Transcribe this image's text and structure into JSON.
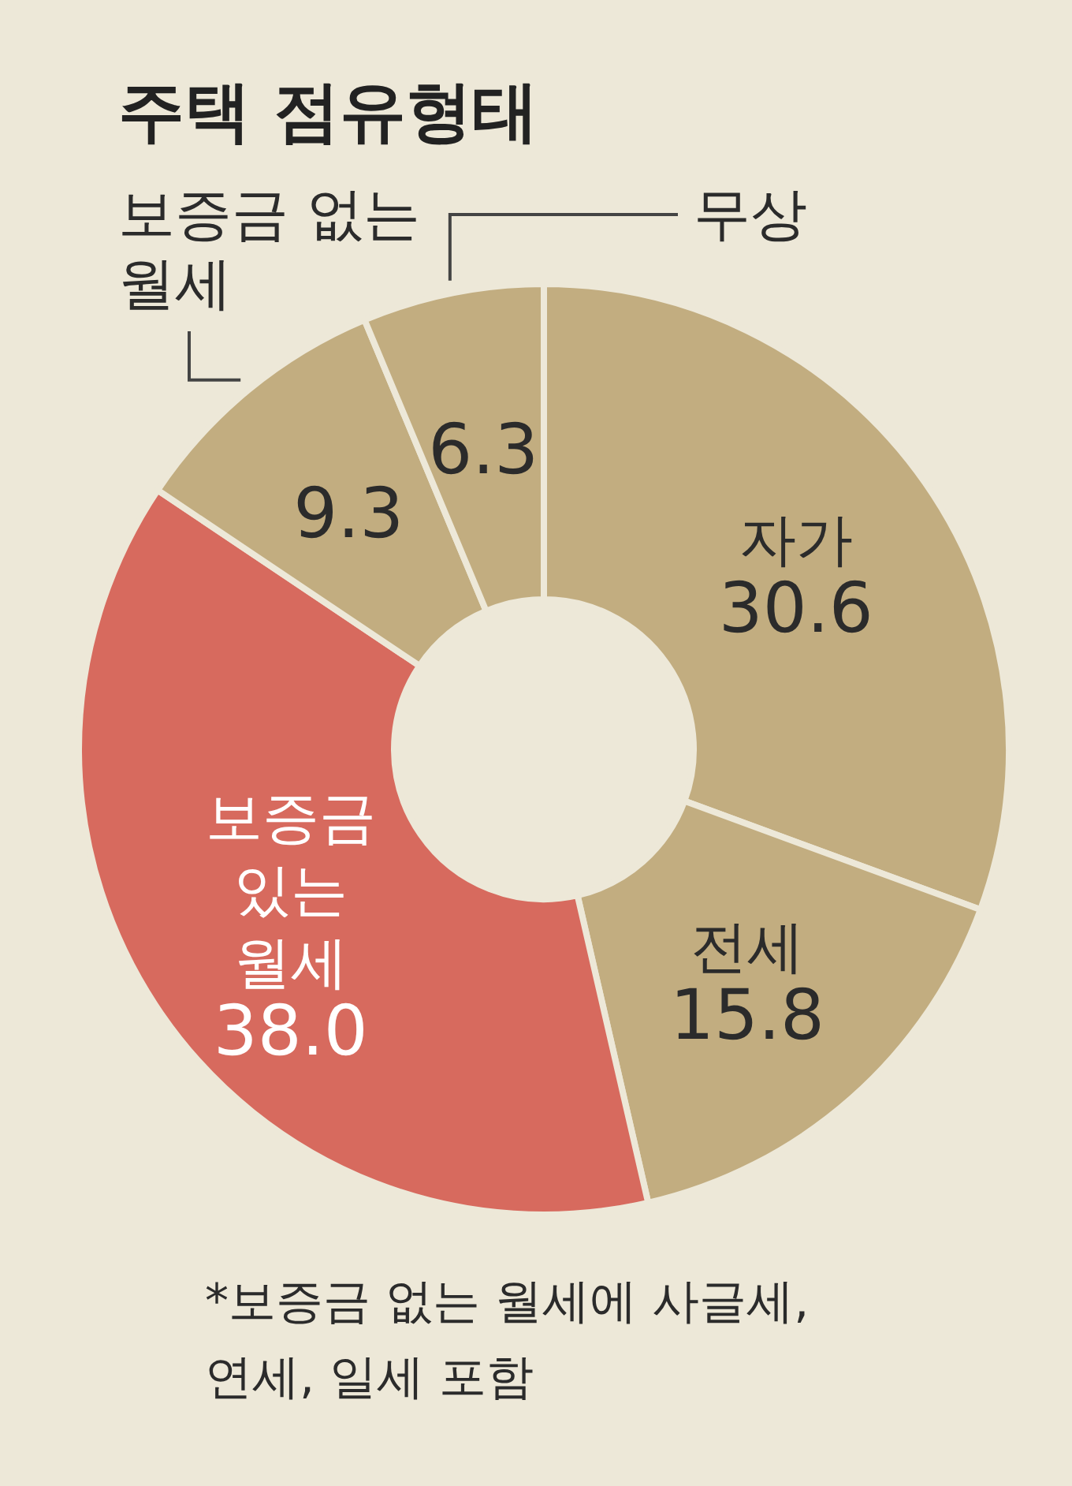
{
  "chart_data": {
    "type": "donut",
    "title": "주택 점유형태",
    "categories": [
      "자가",
      "전세",
      "보증금 있는 월세",
      "보증금 없는 월세",
      "무상"
    ],
    "values": [
      30.6,
      15.8,
      38.0,
      9.3,
      6.3
    ],
    "colors": [
      "#c2ad80",
      "#c2ad80",
      "#d76a5e",
      "#c2ad80",
      "#c2ad80"
    ],
    "value_labels": [
      "30.6",
      "15.8",
      "38.0",
      "9.3",
      "6.3"
    ],
    "annotations": [
      "*보증금 없는 월세에 사글세, 연세, 일세 포함"
    ]
  }
}
